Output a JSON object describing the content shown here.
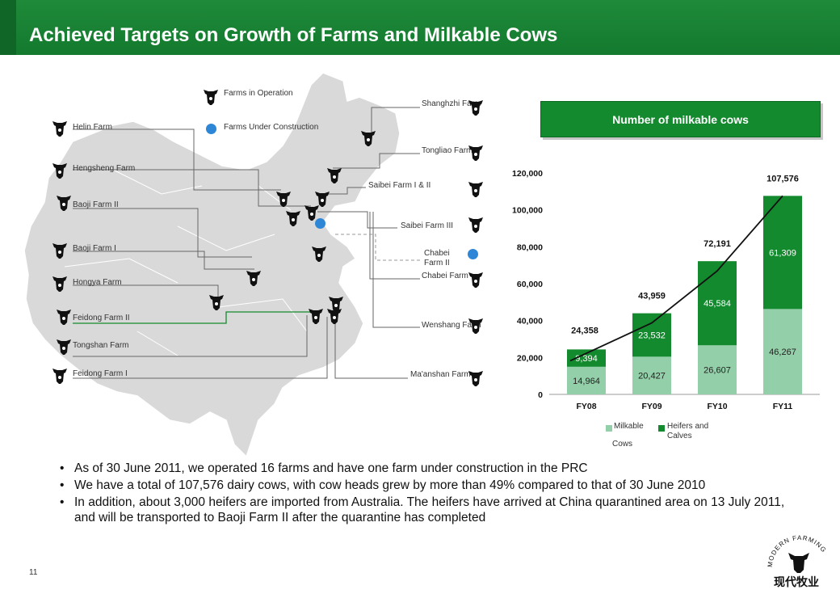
{
  "page": {
    "title": "Achieved Targets on Growth of Farms and Milkable Cows",
    "page_number": "11"
  },
  "map": {
    "legend": {
      "operation": "Farms in Operation",
      "construction": "Farms Under Construction"
    },
    "farms_left": [
      "Helin Farm",
      "Hengsheng Farm",
      "Baoji Farm II",
      "Baoji Farm I",
      "Hongya Farm",
      "Feidong Farm II",
      "Tongshan Farm",
      "Feidong Farm I"
    ],
    "farms_right": [
      "Shanghzhi Farm",
      "Tongliao Farm",
      "Saibei Farm I & II",
      "Saibei Farm III",
      "Chabei Farm II",
      "Chabei Farm",
      "Wenshang Farm",
      "Ma'anshan Farm"
    ],
    "colors": {
      "land": "#d9d9d9",
      "construction": "#2e86d6",
      "cow": "#111111"
    }
  },
  "chart_header": "Number of milkable cows",
  "chart_data": {
    "type": "bar",
    "stacked": true,
    "categories": [
      "FY08",
      "FY09",
      "FY10",
      "FY11"
    ],
    "series": [
      {
        "name": "Milkable Cows",
        "values": [
          14964,
          20427,
          26607,
          46267
        ],
        "labels": [
          "14,964",
          "20,427",
          "26,607",
          "46,267"
        ],
        "color": "#93cfa8"
      },
      {
        "name": "Heifers and Calves",
        "values": [
          9394,
          23532,
          45584,
          61309
        ],
        "labels": [
          "9,394",
          "23,532",
          "45,584",
          "61,309"
        ],
        "color": "#148a2f"
      }
    ],
    "totals": [
      24358,
      43959,
      72191,
      107576
    ],
    "total_labels": [
      "24,358",
      "43,959",
      "72,191",
      "107,576"
    ],
    "yticks": [
      "0",
      "20,000",
      "40,000",
      "60,000",
      "80,000",
      "100,000",
      "120,000"
    ],
    "ylim": [
      0,
      120000
    ],
    "trend_line": true,
    "legend_position": "bottom"
  },
  "legend_labels": {
    "milkable_1": "Milkable",
    "milkable_2": "Cows",
    "heifers_1": "Heifers and",
    "heifers_2": "Calves"
  },
  "bullets": [
    "As of 30 June 2011, we operated 16 farms and have one farm under construction in the PRC",
    "We have a total of 107,576 dairy cows, with cow heads grew by more than 49% compared to that of 30 June 2010",
    "In addition, about 3,000 heifers are imported from Australia.  The heifers have arrived at China quarantined area on 13 July 2011, and will be transported to Baoji Farm II after the quarantine has completed"
  ],
  "logo": {
    "text_en": "MODERN FARMING",
    "text_cn": "现代牧业"
  }
}
